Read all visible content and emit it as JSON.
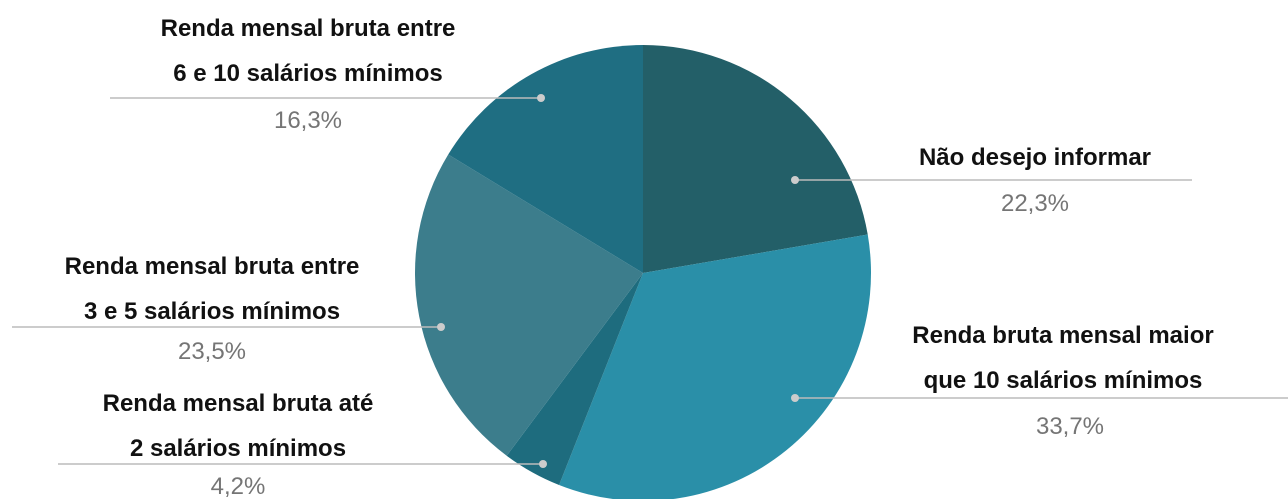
{
  "chart_data": {
    "type": "pie",
    "categories": [
      "Não desejo informar",
      "Renda bruta mensal maior\nque 10 salários mínimos",
      "Renda mensal bruta até\n2 salários mínimos",
      "Renda mensal bruta entre\n3 e 5 salários mínimos",
      "Renda mensal bruta entre\n6 e 10 salários mínimos"
    ],
    "values": [
      22.3,
      33.7,
      4.2,
      23.5,
      16.3
    ],
    "value_labels": [
      "22,3%",
      "33,7%",
      "4,2%",
      "23,5%",
      "16,3%"
    ],
    "colors": [
      "#235f68",
      "#2a8fa8",
      "#1e6c7e",
      "#3c7d8c",
      "#1f6e82"
    ]
  }
}
